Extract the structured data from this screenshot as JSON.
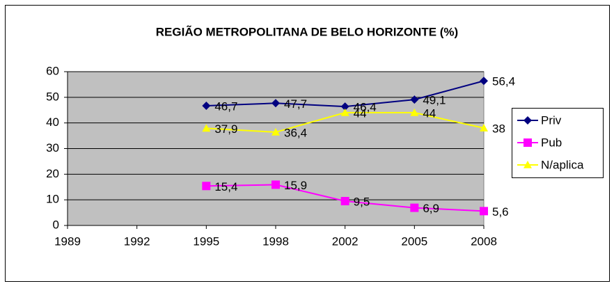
{
  "chart_data": {
    "type": "line",
    "title": "REGIÃO METROPOLITANA DE BELO HORIZONTE (%)",
    "categories": [
      "1989",
      "1992",
      "1995",
      "1998",
      "2002",
      "2005",
      "2008"
    ],
    "series": [
      {
        "name": "Priv",
        "color": "#000080",
        "marker": "diamond",
        "values": [
          null,
          null,
          46.7,
          47.7,
          46.4,
          49.1,
          56.4
        ],
        "value_labels": [
          null,
          null,
          "46,7",
          "47,7",
          "46,4",
          "49,1",
          "56,4"
        ]
      },
      {
        "name": "Pub",
        "color": "#ff00ff",
        "marker": "square",
        "values": [
          null,
          null,
          15.4,
          15.9,
          9.5,
          6.9,
          5.6
        ],
        "value_labels": [
          null,
          null,
          "15,4",
          "15,9",
          "9,5",
          "6,9",
          "5,6"
        ]
      },
      {
        "name": "N/aplica",
        "color": "#ffff00",
        "marker": "triangle",
        "values": [
          null,
          null,
          37.9,
          36.4,
          44,
          44,
          38
        ],
        "value_labels": [
          null,
          null,
          "37,9",
          "36,4",
          "44",
          "44",
          "38"
        ]
      }
    ],
    "ylim": [
      0,
      60
    ],
    "yticks": [
      0,
      10,
      20,
      30,
      40,
      50,
      60
    ],
    "grid": true,
    "legend": "right",
    "plot_background": "#c0c0c0"
  }
}
